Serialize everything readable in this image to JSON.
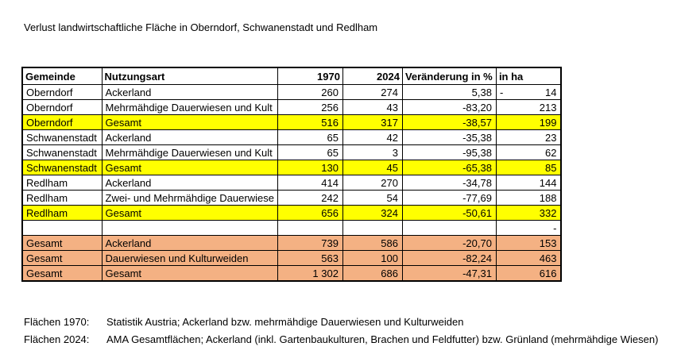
{
  "title": "Verlust landwirtschaftliche Fläche in Oberndorf, Schwanenstadt und Redlham",
  "colors": {
    "highlight_yellow": "#FFFF00",
    "highlight_orange": "#F4B183",
    "border": "#000000"
  },
  "table": {
    "headers": [
      "Gemeinde",
      "Nutzungsart",
      "1970",
      "2024",
      "Veränderung in %",
      "in ha"
    ],
    "rows": [
      {
        "gemeinde": "Oberndorf",
        "nutzungsart": "Ackerland",
        "y1970": "260",
        "y2024": "274",
        "veraenderung": "5,38",
        "in_ha_prefix": "-",
        "in_ha": "14",
        "highlight": "none"
      },
      {
        "gemeinde": "Oberndorf",
        "nutzungsart": "Mehrmähdige Dauerwiesen und Kult",
        "y1970": "256",
        "y2024": "43",
        "veraenderung": "-83,20",
        "in_ha_prefix": "",
        "in_ha": "213",
        "highlight": "none"
      },
      {
        "gemeinde": "Oberndorf",
        "nutzungsart": "Gesamt",
        "y1970": "516",
        "y2024": "317",
        "veraenderung": "-38,57",
        "in_ha_prefix": "",
        "in_ha": "199",
        "highlight": "yellow"
      },
      {
        "gemeinde": "Schwanenstadt",
        "nutzungsart": "Ackerland",
        "y1970": "65",
        "y2024": "42",
        "veraenderung": "-35,38",
        "in_ha_prefix": "",
        "in_ha": "23",
        "highlight": "none"
      },
      {
        "gemeinde": "Schwanenstadt",
        "nutzungsart": "Mehrmähdige Dauerwiesen und Kult",
        "y1970": "65",
        "y2024": "3",
        "veraenderung": "-95,38",
        "in_ha_prefix": "",
        "in_ha": "62",
        "highlight": "none"
      },
      {
        "gemeinde": "Schwanenstadt",
        "nutzungsart": "Gesamt",
        "y1970": "130",
        "y2024": "45",
        "veraenderung": "-65,38",
        "in_ha_prefix": "",
        "in_ha": "85",
        "highlight": "yellow"
      },
      {
        "gemeinde": "Redlham",
        "nutzungsart": "Ackerland",
        "y1970": "414",
        "y2024": "270",
        "veraenderung": "-34,78",
        "in_ha_prefix": "",
        "in_ha": "144",
        "highlight": "none"
      },
      {
        "gemeinde": "Redlham",
        "nutzungsart": "Zwei- und Mehrmähdige Dauerwiese",
        "y1970": "242",
        "y2024": "54",
        "veraenderung": "-77,69",
        "in_ha_prefix": "",
        "in_ha": "188",
        "highlight": "none"
      },
      {
        "gemeinde": "Redlham",
        "nutzungsart": "Gesamt",
        "y1970": "656",
        "y2024": "324",
        "veraenderung": "-50,61",
        "in_ha_prefix": "",
        "in_ha": "332",
        "highlight": "yellow"
      },
      {
        "gemeinde": "",
        "nutzungsart": "",
        "y1970": "",
        "y2024": "",
        "veraenderung": "",
        "in_ha_prefix": "",
        "in_ha": "-",
        "highlight": "none"
      },
      {
        "gemeinde": "Gesamt",
        "nutzungsart": "Ackerland",
        "y1970": "739",
        "y2024": "586",
        "veraenderung": "-20,70",
        "in_ha_prefix": "",
        "in_ha": "153",
        "highlight": "orange"
      },
      {
        "gemeinde": "Gesamt",
        "nutzungsart": "Dauerwiesen und Kulturweiden",
        "y1970": "563",
        "y2024": "100",
        "veraenderung": "-82,24",
        "in_ha_prefix": "",
        "in_ha": "463",
        "highlight": "orange"
      },
      {
        "gemeinde": "Gesamt",
        "nutzungsart": "Gesamt",
        "y1970": "1 302",
        "y2024": "686",
        "veraenderung": "-47,31",
        "in_ha_prefix": "",
        "in_ha": "616",
        "highlight": "orange"
      }
    ]
  },
  "footnotes": [
    {
      "label": "Flächen 1970:",
      "text": "Statistik Austria; Ackerland bzw. mehrmähdige Dauerwiesen und Kulturweiden"
    },
    {
      "label": "Flächen 2024:",
      "text": "AMA Gesamtflächen; Ackerland (inkl. Gartenbaukulturen, Brachen und Feldfutter) bzw. Grünland (mehrmähdige Wiesen)"
    }
  ]
}
